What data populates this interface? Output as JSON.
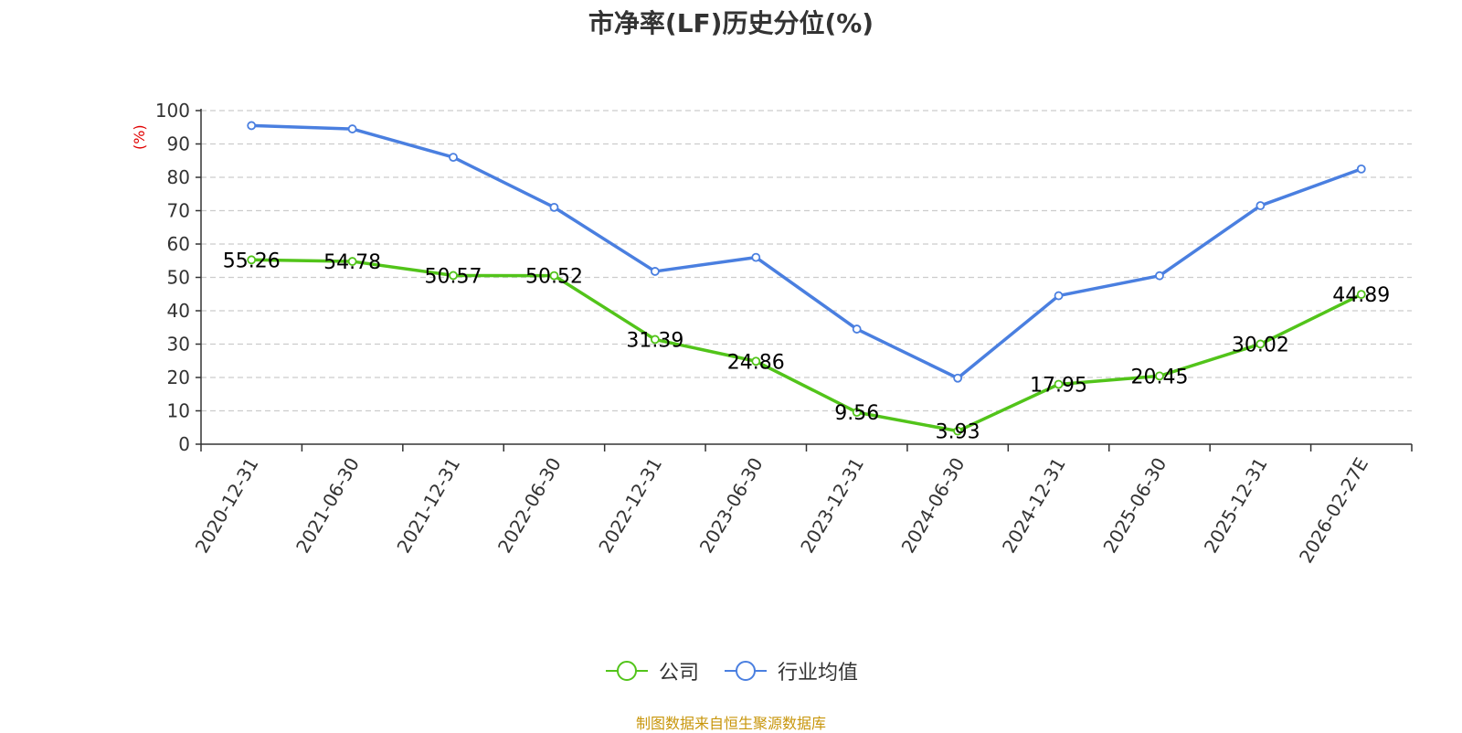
{
  "chart_data": {
    "type": "line",
    "title": "市净率(LF)历史分位(%)",
    "ylabel": "(%)",
    "xlabel": "",
    "categories": [
      "2020-12-31",
      "2021-06-30",
      "2021-12-31",
      "2022-06-30",
      "2022-12-31",
      "2023-06-30",
      "2023-12-31",
      "2024-06-30",
      "2024-12-31",
      "2025-06-30",
      "2025-12-31",
      "2026-02-27E"
    ],
    "ylim": [
      0,
      100
    ],
    "yticks": [
      0,
      10,
      20,
      30,
      40,
      50,
      60,
      70,
      80,
      90,
      100
    ],
    "grid": true,
    "legend_position": "bottom",
    "series": [
      {
        "name": "公司",
        "color": "#52c41a",
        "show_labels": true,
        "values": [
          55.26,
          54.78,
          50.57,
          50.52,
          31.39,
          24.86,
          9.56,
          3.93,
          17.95,
          20.45,
          30.02,
          44.89
        ]
      },
      {
        "name": "行业均值",
        "color": "#4a7fe0",
        "show_labels": false,
        "values": [
          95.5,
          94.5,
          86.0,
          71.0,
          51.8,
          56.0,
          34.5,
          19.8,
          44.5,
          50.5,
          71.5,
          82.5
        ]
      }
    ]
  },
  "source": "制图数据来自恒生聚源数据库"
}
